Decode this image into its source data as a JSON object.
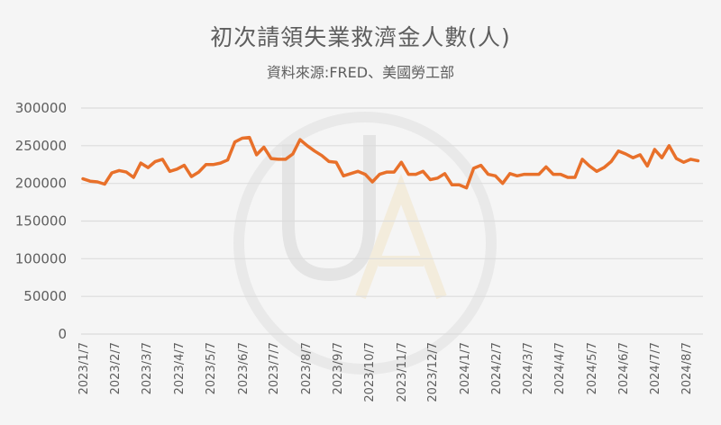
{
  "chart_data": {
    "type": "line",
    "title": "初次請領失業救濟金人數(人)",
    "subtitle": "資料來源:FRED、美國勞工部",
    "xlabel": "",
    "ylabel": "",
    "ylim": [
      0,
      300000
    ],
    "yticks": [
      0,
      50000,
      100000,
      150000,
      200000,
      250000,
      300000
    ],
    "ytick_labels": [
      "0",
      "50000",
      "100000",
      "150000",
      "200000",
      "250000",
      "300000"
    ],
    "xtick_labels": [
      "2023/1/7",
      "2023/2/7",
      "2023/3/7",
      "2023/4/7",
      "2023/5/7",
      "2023/6/7",
      "2023/7/7",
      "2023/8/7",
      "2023/9/7",
      "2023/10/7",
      "2023/11/7",
      "2023/12/7",
      "2024/1/7",
      "2024/2/7",
      "2024/3/7",
      "2024/4/7",
      "2024/5/7",
      "2024/6/7",
      "2024/7/7",
      "2024/8/7"
    ],
    "grid": true,
    "legend": "none",
    "frequency": "weekly",
    "start": "2023/1/7",
    "series": [
      {
        "name": "初次請領失業救濟金人數",
        "color": "#e8702a",
        "values": [
          206000,
          203000,
          202000,
          199000,
          214000,
          217000,
          215000,
          208000,
          227000,
          221000,
          229000,
          232000,
          216000,
          219000,
          224000,
          209000,
          215000,
          225000,
          225000,
          227000,
          231000,
          255000,
          260000,
          261000,
          238000,
          248000,
          233000,
          232000,
          232000,
          239000,
          258000,
          250000,
          243000,
          237000,
          229000,
          228000,
          210000,
          213000,
          216000,
          212000,
          202000,
          212000,
          215000,
          215000,
          228000,
          212000,
          212000,
          216000,
          205000,
          207000,
          213000,
          198000,
          198000,
          194000,
          220000,
          224000,
          212000,
          210000,
          200000,
          213000,
          210000,
          212000,
          212000,
          212000,
          222000,
          212000,
          212000,
          208000,
          208000,
          232000,
          223000,
          216000,
          221000,
          229000,
          243000,
          239000,
          234000,
          238000,
          223000,
          245000,
          234000,
          250000,
          233000,
          228000,
          232000,
          230000
        ]
      }
    ]
  },
  "watermark": "UA"
}
